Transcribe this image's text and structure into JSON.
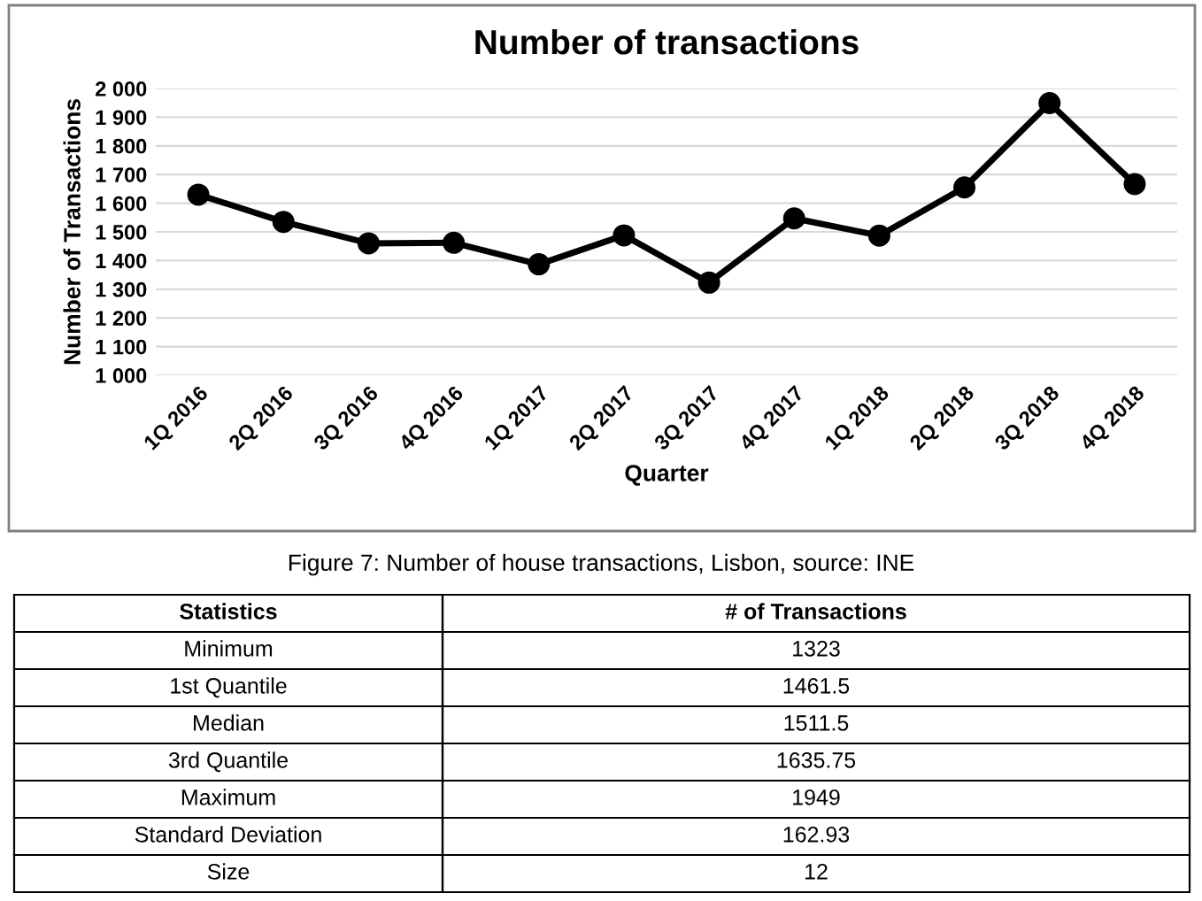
{
  "chart_data": {
    "type": "line",
    "title": "Number of transactions",
    "xlabel": "Quarter",
    "ylabel": "Number of Transactions",
    "categories": [
      "1Q 2016",
      "2Q 2016",
      "3Q 2016",
      "4Q 2016",
      "1Q 2017",
      "2Q 2017",
      "3Q 2017",
      "4Q 2017",
      "1Q 2018",
      "2Q 2018",
      "3Q 2018",
      "4Q 2018"
    ],
    "series": [
      {
        "color": "#000000",
        "values": [
          1630,
          1535,
          1460,
          1462,
          1387,
          1488,
          1323,
          1547,
          1487,
          1655,
          1949,
          1667
        ]
      }
    ],
    "ylim": [
      1000,
      2000
    ],
    "yticks": [
      {
        "value": 1000,
        "label": "1 000"
      },
      {
        "value": 1100,
        "label": "1 100"
      },
      {
        "value": 1200,
        "label": "1 200"
      },
      {
        "value": 1300,
        "label": "1 300"
      },
      {
        "value": 1400,
        "label": "1 400"
      },
      {
        "value": 1500,
        "label": "1 500"
      },
      {
        "value": 1600,
        "label": "1 600"
      },
      {
        "value": 1700,
        "label": "1 700"
      },
      {
        "value": 1800,
        "label": "1 800"
      },
      {
        "value": 1900,
        "label": "1 900"
      },
      {
        "value": 2000,
        "label": "2 000"
      }
    ],
    "grid": "y",
    "marker": "circle",
    "line_style": "solid",
    "annotations": [
      "Figure 7: Number of house transactions, Lisbon, source: INE",
      "Statistics",
      "# of Transactions",
      "Minimum",
      "1323",
      "1st Quantile",
      "1461.5",
      "Median",
      "1511.5",
      "3rd Quantile",
      "1635.75",
      "Maximum",
      "1949",
      "Standard Deviation",
      "162.93",
      "Size",
      "12"
    ]
  }
}
